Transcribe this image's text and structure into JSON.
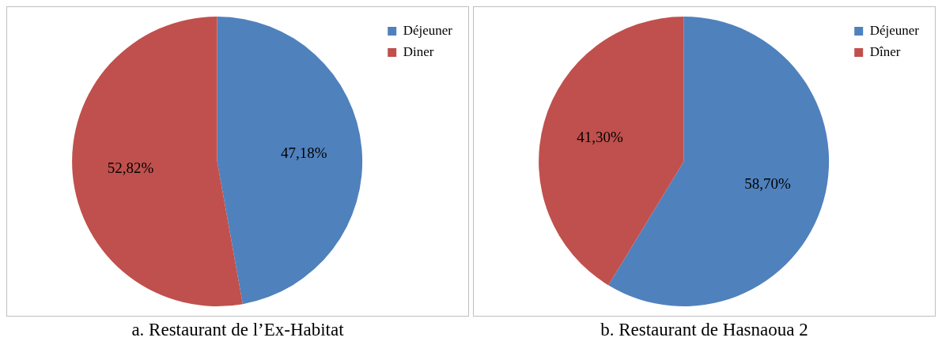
{
  "chart_data": [
    {
      "type": "pie",
      "title": "a. Restaurant de l’Ex-Habitat",
      "categories": [
        "Déjeuner",
        "Diner"
      ],
      "values": [
        47.18,
        52.82
      ],
      "colors": [
        "#4f81bd",
        "#c0504d"
      ],
      "value_labels": [
        "47,18%",
        "52,82%"
      ],
      "legend": "top right"
    },
    {
      "type": "pie",
      "title": "b. Restaurant de Hasnaoua 2",
      "categories": [
        "Déjeuner",
        "Dîner"
      ],
      "values": [
        58.7,
        41.3
      ],
      "colors": [
        "#4f81bd",
        "#c0504d"
      ],
      "value_labels": [
        "58,70%",
        "41,30%"
      ],
      "legend": "top right"
    }
  ]
}
